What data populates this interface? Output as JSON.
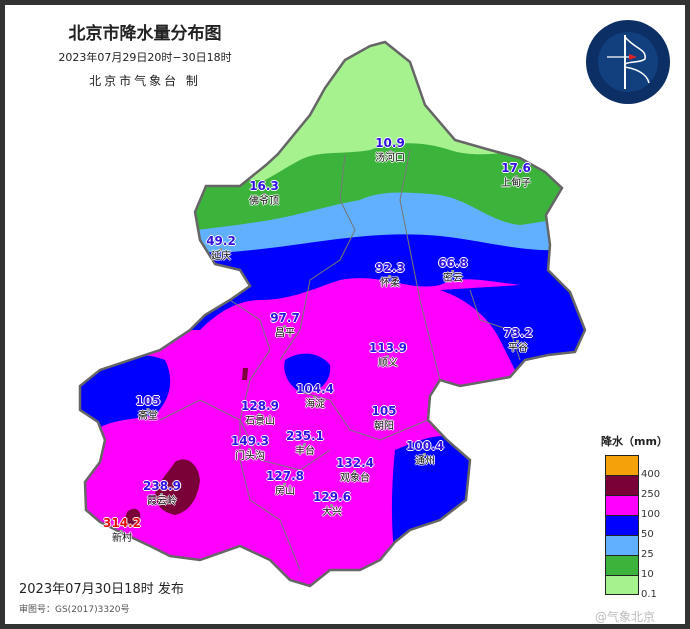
{
  "header": {
    "title": "北京市降水量分布图",
    "period": "2023年07月29日20时−30日18时",
    "producer": "北京市气象台 制"
  },
  "logo": {
    "text": "BEIJING METEOROLOGICAL SERVICE",
    "cn": "北京市气象局"
  },
  "stations": [
    {
      "name": "汤河口",
      "value": "10.9"
    },
    {
      "name": "上甸子",
      "value": "17.6"
    },
    {
      "name": "佛爷顶",
      "value": "16.3"
    },
    {
      "name": "延庆",
      "value": "49.2"
    },
    {
      "name": "怀柔",
      "value": "92.3"
    },
    {
      "name": "密云",
      "value": "66.8"
    },
    {
      "name": "昌平",
      "value": "97.7"
    },
    {
      "name": "平谷",
      "value": "73.2"
    },
    {
      "name": "顺义",
      "value": "113.9"
    },
    {
      "name": "斋堂",
      "value": "105"
    },
    {
      "name": "海淀",
      "value": "104.4"
    },
    {
      "name": "石景山",
      "value": "128.9"
    },
    {
      "name": "朝阳",
      "value": "105"
    },
    {
      "name": "门头沟",
      "value": "149.3"
    },
    {
      "name": "丰台",
      "value": "235.1"
    },
    {
      "name": "通州",
      "value": "100.4"
    },
    {
      "name": "房山",
      "value": "127.8"
    },
    {
      "name": "观象台",
      "value": "132.4"
    },
    {
      "name": "大兴",
      "value": "129.6"
    },
    {
      "name": "霞云岭",
      "value": "238.9"
    },
    {
      "name": "新村",
      "value": "314.2"
    }
  ],
  "legend": {
    "title": "降水（mm）",
    "items": [
      {
        "color": "#f5a20a",
        "label": "400"
      },
      {
        "color": "#7a0038",
        "label": "250"
      },
      {
        "color": "#ff00ff",
        "label": "100"
      },
      {
        "color": "#0000ff",
        "label": "50"
      },
      {
        "color": "#60b0ff",
        "label": "25"
      },
      {
        "color": "#3cb43c",
        "label": "10"
      },
      {
        "color": "#a6f28f",
        "label": "0.1"
      }
    ]
  },
  "footer": {
    "issued": "2023年07月30日18时 发布",
    "review_no": "审图号：GS(2017)3320号",
    "watermark": "@气象北京"
  }
}
